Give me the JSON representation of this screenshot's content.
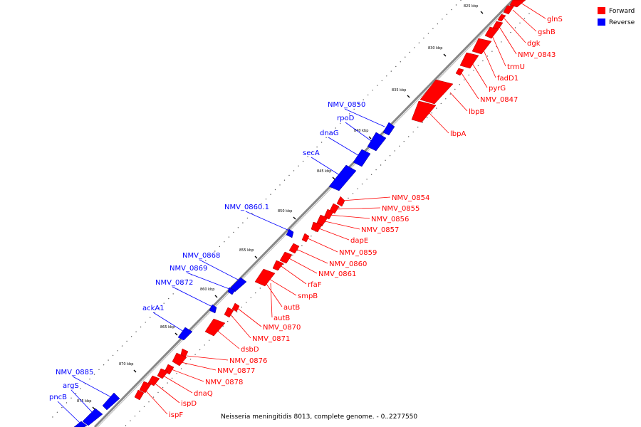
{
  "legend": [
    {
      "label": "Forward",
      "color": "#ff0000"
    },
    {
      "label": "Reverse",
      "color": "#0000ff"
    }
  ],
  "caption": "Neisseria meningitidis 8013, complete genome. - 0..2277550",
  "colors": {
    "forward": "#ff0000",
    "reverse": "#0000ff",
    "backbone": "#888888"
  },
  "ticks": [
    "825 kbp",
    "830 kbp",
    "835 kbp",
    "840 kbp",
    "845 kbp",
    "850 kbp",
    "855 kbp",
    "860 kbp",
    "865 kbp",
    "870 kbp",
    "875 kbp"
  ],
  "forward_genes": [
    "glnS",
    "gshB",
    "dgk",
    "NMV_0843",
    "trmU",
    "fadD1",
    "pyrG",
    "NMV_0847",
    "lbpB",
    "lbpA",
    "NMV_0854",
    "NMV_0855",
    "NMV_0856",
    "NMV_0857",
    "dapE",
    "NMV_0859",
    "NMV_0860",
    "NMV_0861",
    "rfaF",
    "smpB",
    "autB",
    "autB",
    "NMV_0870",
    "NMV_0871",
    "dsbD",
    "NMV_0876",
    "NMV_0877",
    "NMV_0878",
    "dnaQ",
    "ispD",
    "ispF"
  ],
  "reverse_genes": [
    "NMV_0850",
    "rpoD",
    "dnaG",
    "secA",
    "NMV_0860.1",
    "NMV_0868",
    "NMV_0869",
    "NMV_0872",
    "ackA1",
    "NMV_0885",
    "argS",
    "pncB"
  ]
}
